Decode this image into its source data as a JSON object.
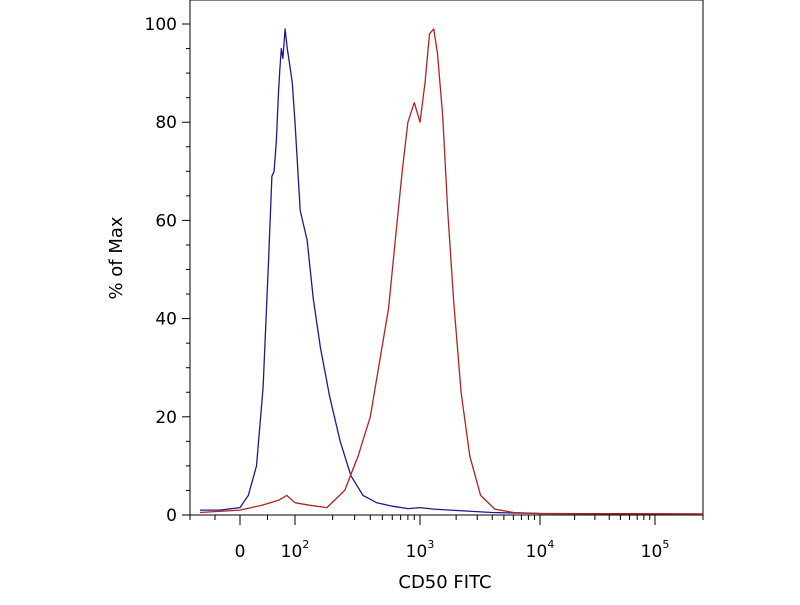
{
  "chart_data": {
    "type": "line",
    "title": "",
    "xlabel": "CD50 FITC",
    "ylabel": "% of Max",
    "xscale": "biexponential",
    "xlim": [
      -100,
      200000
    ],
    "ylim": [
      0,
      100
    ],
    "yticks": [
      "0",
      "20",
      "40",
      "60",
      "80",
      "100"
    ],
    "xticks": [
      {
        "value": 0,
        "base": "0",
        "exp": ""
      },
      {
        "value": 100,
        "base": "10",
        "exp": "2"
      },
      {
        "value": 1000,
        "base": "10",
        "exp": "3"
      },
      {
        "value": 10000,
        "base": "10",
        "exp": "4"
      },
      {
        "value": 100000,
        "base": "10",
        "exp": "5"
      }
    ],
    "grid": false,
    "legend": "none",
    "series": [
      {
        "color": "#1a1a8c",
        "x": [
          -80,
          -40,
          0,
          15,
          30,
          42,
          52,
          58,
          62,
          66,
          70,
          72,
          75,
          78,
          82,
          86,
          90,
          95,
          100,
          110,
          125,
          140,
          160,
          190,
          230,
          280,
          350,
          450,
          600,
          800,
          1000,
          1300,
          1800,
          2500,
          4000,
          10000,
          200000
        ],
        "y": [
          1,
          1,
          1.5,
          4,
          10,
          26,
          52,
          69,
          70,
          76,
          86,
          90,
          95,
          93,
          99,
          95,
          92,
          88,
          80,
          62,
          56,
          44,
          34,
          24,
          15,
          8,
          4,
          2.5,
          1.8,
          1.3,
          1.5,
          1.2,
          1,
          0.8,
          0.5,
          0.3,
          0.2
        ]
      },
      {
        "color": "#b22222",
        "x": [
          -80,
          0,
          40,
          70,
          85,
          100,
          130,
          180,
          250,
          320,
          400,
          480,
          560,
          640,
          720,
          800,
          900,
          1000,
          1100,
          1200,
          1300,
          1400,
          1550,
          1700,
          1900,
          2200,
          2600,
          3200,
          4200,
          6000,
          10000,
          200000
        ],
        "y": [
          0.5,
          1,
          2,
          3,
          4,
          2.5,
          2,
          1.5,
          5,
          12,
          20,
          32,
          42,
          57,
          70,
          80,
          84,
          80,
          88,
          98,
          99,
          94,
          81,
          62,
          44,
          25,
          12,
          4,
          1.2,
          0.5,
          0.3,
          0.2
        ]
      }
    ]
  }
}
